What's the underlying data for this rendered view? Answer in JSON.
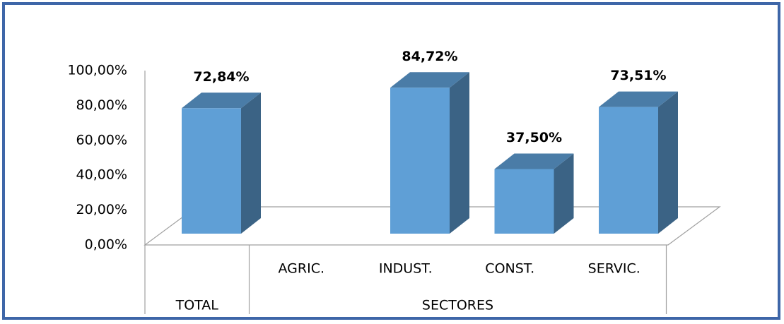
{
  "chart_data": {
    "type": "bar3d",
    "categories": [
      null,
      "AGRIC.",
      "INDUST.",
      "CONST.",
      "SERVIC."
    ],
    "category_groups": [
      {
        "name": "TOTAL",
        "count": 1
      },
      {
        "name": "SECTORES",
        "count": 4
      }
    ],
    "values": [
      72.84,
      null,
      84.72,
      37.5,
      73.51
    ],
    "value_labels": [
      "72,84%",
      null,
      "84,72%",
      "37,50%",
      "73,51%"
    ],
    "color": "#5f9fd6",
    "ylim": [
      0,
      100
    ],
    "yticks": [
      {
        "value": 0,
        "label": "0,00%"
      },
      {
        "value": 20,
        "label": "20,00%"
      },
      {
        "value": 40,
        "label": "40,00%"
      },
      {
        "value": 60,
        "label": "60,00%"
      },
      {
        "value": 80,
        "label": "80,00%"
      },
      {
        "value": 100,
        "label": "100,00%"
      }
    ],
    "grid": false
  }
}
